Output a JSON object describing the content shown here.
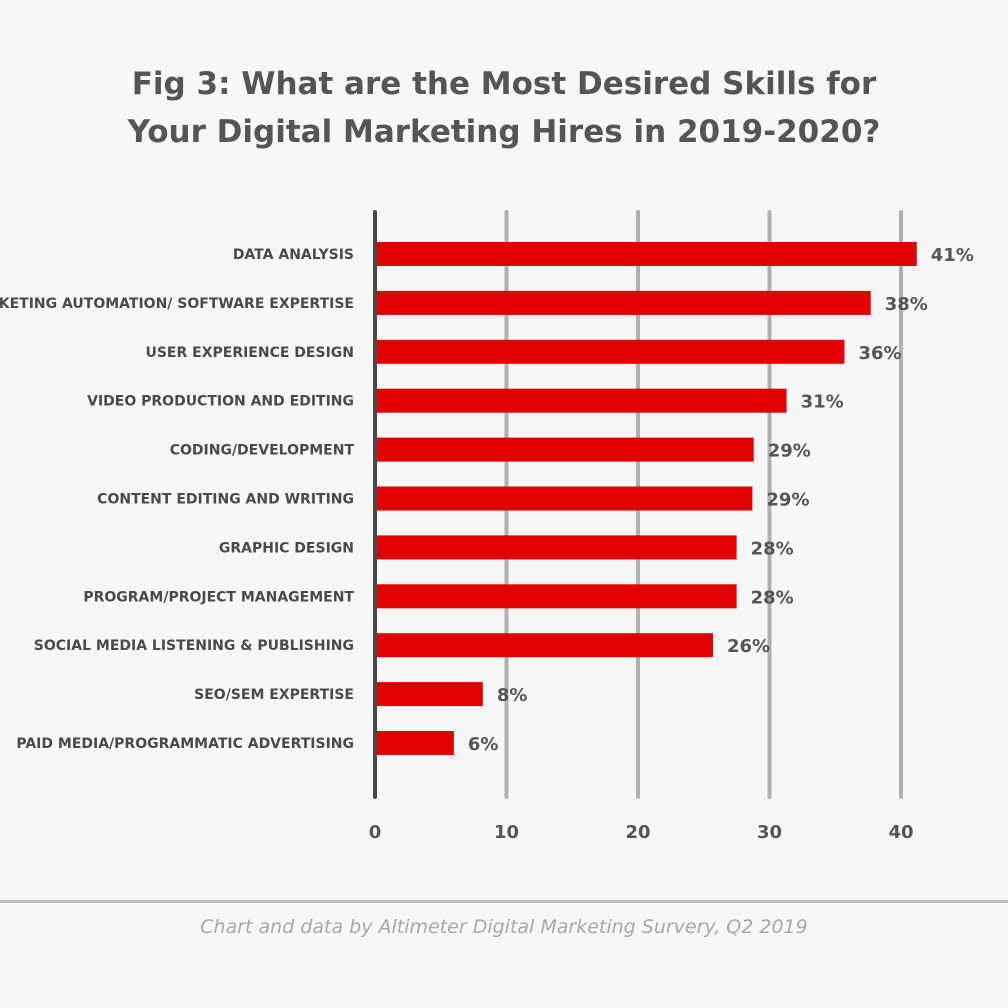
{
  "chart_data": {
    "type": "bar",
    "orientation": "horizontal",
    "title": [
      "Fig 3: What are the Most Desired Skills for",
      "Your Digital Marketing Hires in 2019-2020?"
    ],
    "categories": [
      "DATA ANALYSIS",
      "MARKETING AUTOMATION/ SOFTWARE EXPERTISE",
      "USER EXPERIENCE DESIGN",
      "VIDEO PRODUCTION AND EDITING",
      "CODING/DEVELOPMENT",
      "CONTENT EDITING AND WRITING",
      "GRAPHIC DESIGN",
      "PROGRAM/PROJECT MANAGEMENT",
      "SOCIAL MEDIA LISTENING & PUBLISHING",
      "SEO/SEM EXPERTISE",
      "PAID MEDIA/PROGRAMMATIC ADVERTISING"
    ],
    "values": [
      41,
      38,
      36,
      31,
      29,
      29,
      28,
      28,
      26,
      8,
      6
    ],
    "plot_values": [
      41.2,
      37.7,
      35.7,
      31.3,
      28.8,
      28.7,
      27.5,
      27.5,
      25.7,
      8.2,
      6.0
    ],
    "value_labels": [
      "41%",
      "38%",
      "36%",
      "31%",
      "29%",
      "29%",
      "28%",
      "28%",
      "26%",
      "8%",
      "6%"
    ],
    "xticks": [
      "0",
      "10",
      "20",
      "30",
      "40"
    ],
    "xtick_values": [
      0,
      10,
      20,
      30,
      40
    ],
    "xlim": [
      0,
      40
    ],
    "grid": "vertical",
    "legend": "none",
    "bar_color": "#e00000",
    "grid_color": "#b0b0b0",
    "axis_color": "#4a4a4a"
  },
  "source_note": "Chart and data by Altimeter Digital Marketing Survery, Q2 2019"
}
